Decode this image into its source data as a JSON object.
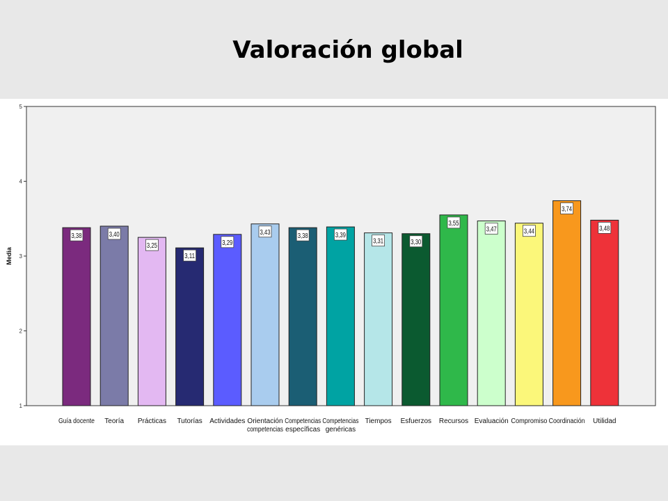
{
  "slide": {
    "title": "Valoración global"
  },
  "chart_data": {
    "type": "bar",
    "title": "",
    "xlabel": "",
    "ylabel": "Media",
    "ylim": [
      1,
      5
    ],
    "yticks": [
      "1",
      "2",
      "3",
      "4",
      "5"
    ],
    "categories": [
      [
        "Guía docente"
      ],
      [
        "Teoría"
      ],
      [
        "Prácticas"
      ],
      [
        "Tutorías"
      ],
      [
        "Actividades"
      ],
      [
        "Orientación",
        "competencias"
      ],
      [
        "Competencias",
        "específicas"
      ],
      [
        "Competencias",
        "genéricas"
      ],
      [
        "Tiempos"
      ],
      [
        "Esfuerzos"
      ],
      [
        "Recursos"
      ],
      [
        "Evaluación"
      ],
      [
        "Compromiso"
      ],
      [
        "Coordinación"
      ],
      [
        "Utilidad"
      ]
    ],
    "values": [
      3.38,
      3.4,
      3.25,
      3.11,
      3.29,
      3.43,
      3.38,
      3.39,
      3.31,
      3.3,
      3.55,
      3.47,
      3.44,
      3.74,
      3.48
    ],
    "value_labels": [
      "3,38",
      "3,40",
      "3,25",
      "3,11",
      "3,29",
      "3,43",
      "3,38",
      "3,39",
      "3,31",
      "3,30",
      "3,55",
      "3,47",
      "3,44",
      "3,74",
      "3,48"
    ],
    "colors": [
      "#7b2a7e",
      "#7b7ba8",
      "#e3b8f2",
      "#262a72",
      "#5b5cff",
      "#a9ccee",
      "#1b5e74",
      "#00a3a3",
      "#b5e6e8",
      "#0b5a30",
      "#2fb84a",
      "#ccffcc",
      "#fbf77a",
      "#f8981d",
      "#ee3239"
    ],
    "grid": false,
    "legend": "none",
    "plot_background": "#f0f0f0"
  }
}
